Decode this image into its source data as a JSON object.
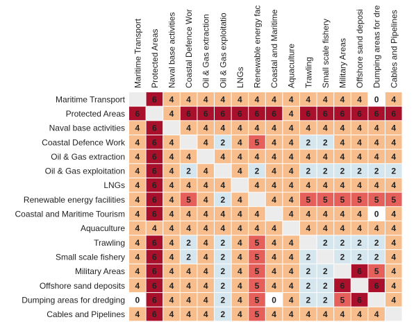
{
  "chart_data": {
    "type": "heatmap",
    "x_categories": [
      "Maritime Transport",
      "Protected Areas",
      "Naval base activities",
      "Coastal Defence Wor",
      "Oil & Gas extraction",
      "Oil & Gas exploitatio",
      "LNGs",
      "Renewable energy fac",
      "Coastal and Maritime",
      "Aquaculture",
      "Trawling",
      "Small scale fishery",
      "Military Areas",
      "Offshore sand deposi",
      "Dumping areas for dre",
      "Cables and Pipelines"
    ],
    "y_categories": [
      "Maritime Transport",
      "Protected Areas",
      "Naval base activities",
      "Coastal Defence Work",
      "Oil & Gas extraction",
      "Oil & Gas exploitation",
      "LNGs",
      "Renewable energy facilities",
      "Coastal and Maritime Tourism",
      "Aquaculture",
      "Trawling",
      "Small scale fishery",
      "Military Areas",
      "Offshore sand deposits",
      "Dumping areas for dredging",
      "Cables and Pipelines"
    ],
    "values": [
      [
        null,
        6,
        4,
        4,
        4,
        4,
        4,
        4,
        4,
        4,
        4,
        4,
        4,
        4,
        0,
        4
      ],
      [
        6,
        null,
        4,
        6,
        6,
        6,
        6,
        6,
        6,
        4,
        6,
        6,
        6,
        6,
        6,
        6
      ],
      [
        4,
        6,
        null,
        4,
        4,
        4,
        4,
        4,
        4,
        4,
        4,
        4,
        4,
        4,
        4,
        4
      ],
      [
        4,
        6,
        4,
        null,
        4,
        2,
        4,
        5,
        4,
        4,
        2,
        2,
        4,
        4,
        4,
        4
      ],
      [
        4,
        6,
        4,
        4,
        null,
        4,
        4,
        4,
        4,
        4,
        4,
        4,
        4,
        4,
        4,
        4
      ],
      [
        4,
        6,
        4,
        2,
        4,
        null,
        4,
        2,
        4,
        4,
        2,
        2,
        2,
        2,
        2,
        2
      ],
      [
        4,
        6,
        4,
        4,
        4,
        4,
        null,
        4,
        4,
        4,
        4,
        4,
        4,
        4,
        4,
        4
      ],
      [
        4,
        6,
        4,
        5,
        4,
        2,
        4,
        null,
        4,
        4,
        5,
        5,
        5,
        5,
        5,
        5
      ],
      [
        4,
        6,
        4,
        4,
        4,
        4,
        4,
        4,
        null,
        4,
        4,
        4,
        4,
        4,
        0,
        4
      ],
      [
        4,
        4,
        4,
        4,
        4,
        4,
        4,
        4,
        4,
        null,
        4,
        4,
        4,
        4,
        4,
        4
      ],
      [
        4,
        6,
        4,
        2,
        4,
        2,
        4,
        5,
        4,
        4,
        null,
        2,
        2,
        2,
        2,
        4
      ],
      [
        4,
        6,
        4,
        2,
        4,
        2,
        4,
        5,
        4,
        4,
        2,
        null,
        2,
        2,
        2,
        4
      ],
      [
        4,
        6,
        4,
        4,
        4,
        2,
        4,
        5,
        4,
        4,
        2,
        2,
        null,
        6,
        5,
        4
      ],
      [
        4,
        6,
        4,
        4,
        4,
        2,
        4,
        5,
        4,
        4,
        2,
        2,
        6,
        null,
        6,
        4
      ],
      [
        0,
        6,
        4,
        4,
        4,
        2,
        4,
        5,
        0,
        4,
        2,
        2,
        5,
        6,
        null,
        4
      ],
      [
        4,
        6,
        4,
        4,
        4,
        2,
        4,
        5,
        4,
        4,
        4,
        4,
        4,
        4,
        4,
        null
      ]
    ],
    "colors": {
      "0": "#ffffff",
      "2": "#d6e6ef",
      "4": "#f8bd8c",
      "5": "#e5605a",
      "6": "#a8102b"
    },
    "empty_color": "#ececec"
  }
}
